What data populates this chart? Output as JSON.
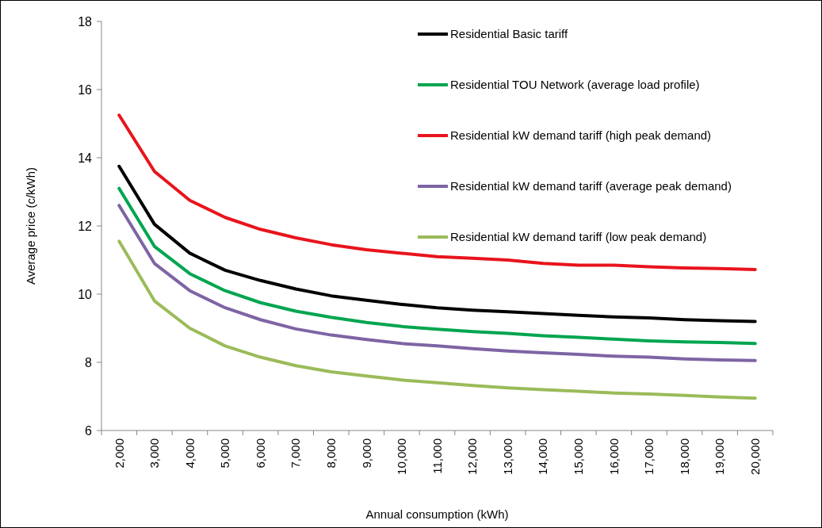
{
  "chart_data": {
    "type": "line",
    "xlabel": "Annual consumption (kWh)",
    "ylabel": "Average price (c/kWh)",
    "categories": [
      "2,000",
      "3,000",
      "4,000",
      "5,000",
      "6,000",
      "7,000",
      "8,000",
      "9,000",
      "10,000",
      "11,000",
      "12,000",
      "13,000",
      "14,000",
      "15,000",
      "16,000",
      "17,000",
      "18,000",
      "19,000",
      "20,000"
    ],
    "ylim": [
      6,
      18
    ],
    "yticks": [
      6,
      8,
      10,
      12,
      14,
      16,
      18
    ],
    "grid": false,
    "legend": "top right",
    "marker": "none",
    "line_style": "solid",
    "series": [
      {
        "name": "Residential Basic tariff",
        "color": "#000000",
        "values": [
          13.75,
          12.05,
          11.2,
          10.7,
          10.4,
          10.15,
          9.95,
          9.82,
          9.7,
          9.6,
          9.53,
          9.48,
          9.43,
          9.38,
          9.33,
          9.3,
          9.25,
          9.22,
          9.2
        ]
      },
      {
        "name": "Residential TOU Network (average load profile)",
        "color": "#00a550",
        "values": [
          13.1,
          11.4,
          10.6,
          10.1,
          9.75,
          9.5,
          9.32,
          9.17,
          9.05,
          8.97,
          8.9,
          8.85,
          8.78,
          8.73,
          8.68,
          8.63,
          8.6,
          8.58,
          8.55
        ]
      },
      {
        "name": "Residential kW demand tariff (high peak demand)",
        "color": "#e8141c",
        "values": [
          15.25,
          13.6,
          12.75,
          12.25,
          11.9,
          11.65,
          11.45,
          11.3,
          11.2,
          11.1,
          11.05,
          11.0,
          10.9,
          10.85,
          10.85,
          10.8,
          10.77,
          10.75,
          10.72
        ]
      },
      {
        "name": "Residential kW demand tariff (average peak demand)",
        "color": "#7e64a4",
        "values": [
          12.6,
          10.9,
          10.1,
          9.6,
          9.25,
          8.98,
          8.8,
          8.67,
          8.55,
          8.48,
          8.4,
          8.33,
          8.28,
          8.23,
          8.18,
          8.15,
          8.1,
          8.07,
          8.05
        ]
      },
      {
        "name": "Residential kW demand tariff (low peak demand)",
        "color": "#9bbb59",
        "values": [
          11.55,
          9.8,
          9.0,
          8.48,
          8.15,
          7.9,
          7.72,
          7.6,
          7.48,
          7.4,
          7.32,
          7.25,
          7.2,
          7.15,
          7.1,
          7.07,
          7.03,
          6.98,
          6.95
        ]
      }
    ]
  }
}
